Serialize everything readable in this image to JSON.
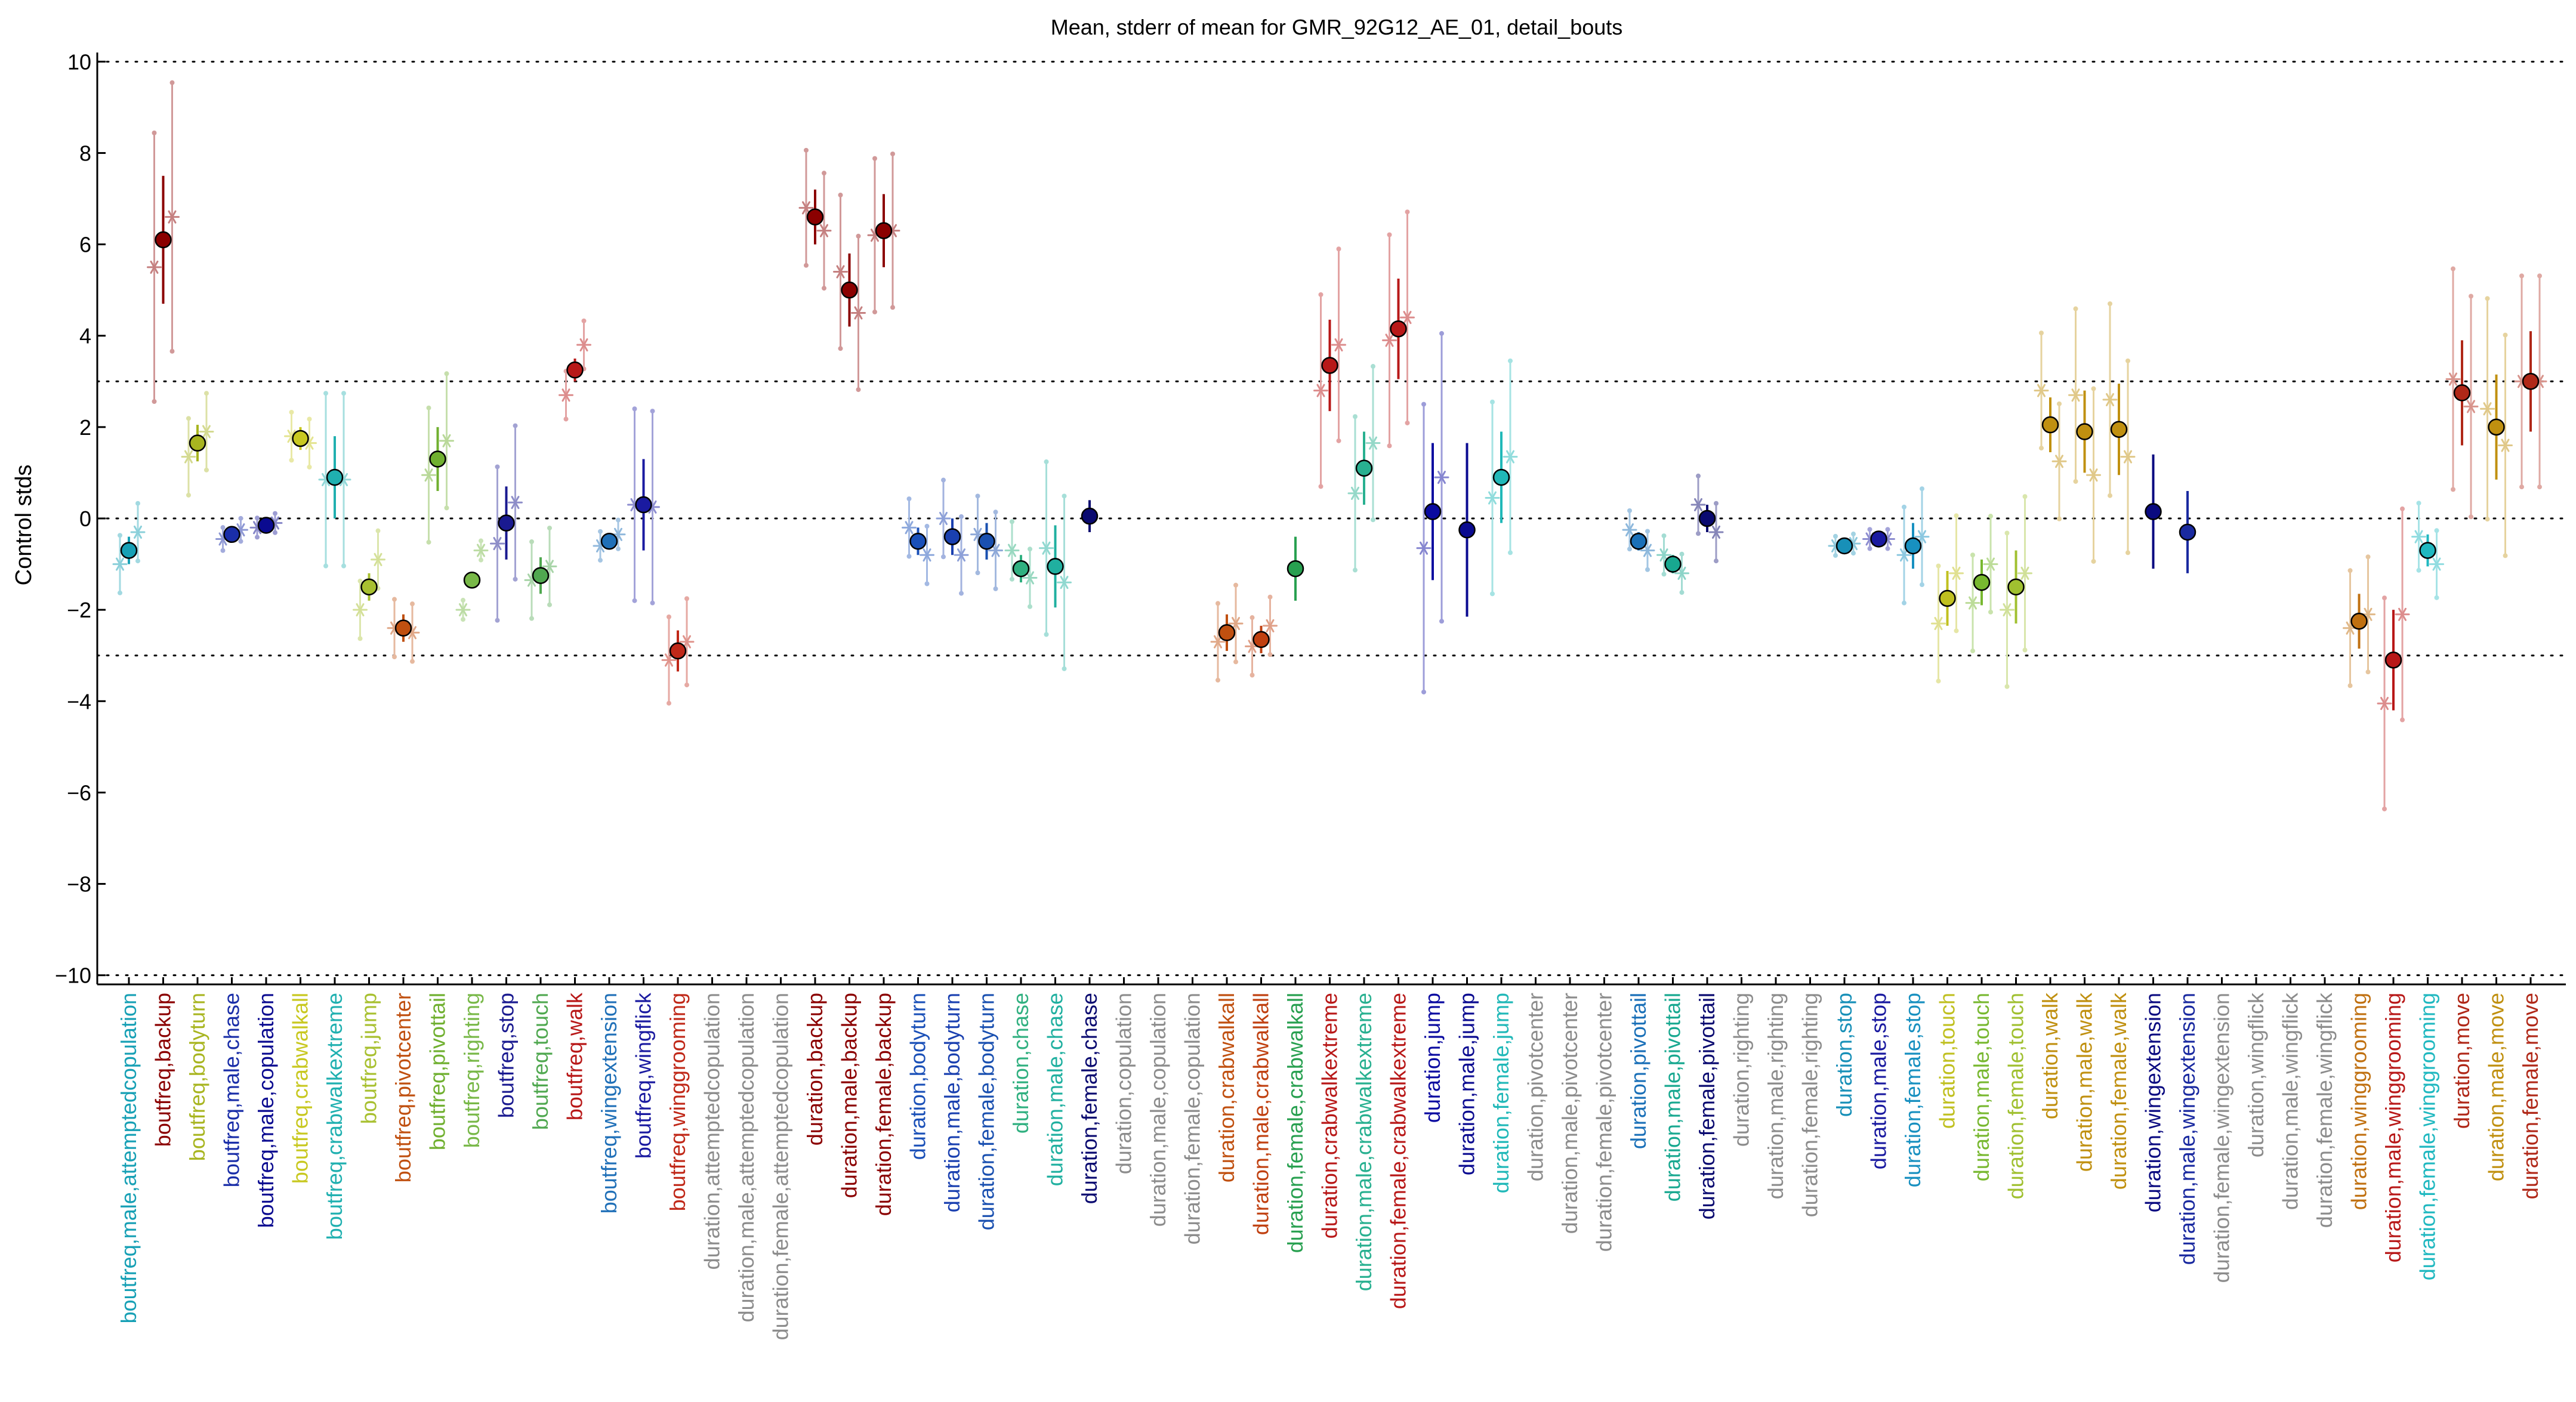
{
  "chart_data": {
    "type": "scatter",
    "title": "Mean, stderr of mean for GMR_92G12_AE_01, detail_bouts",
    "ylabel": "Control stds",
    "xlabel": "",
    "ylim": [
      -10.2,
      10.2
    ],
    "yticks": [
      -10,
      -8,
      -6,
      -4,
      -2,
      0,
      2,
      4,
      6,
      8,
      10
    ],
    "reference_lines": [
      10,
      3,
      0,
      -3,
      -10
    ],
    "grid": false,
    "categories": [
      {
        "label": "boutfreq,male,attemptedcopulation",
        "color": "#17a0b5",
        "mean": -0.7,
        "sem": 0.3,
        "stars": [
          -1.0,
          -0.3
        ]
      },
      {
        "label": "boutfreq,backup",
        "color": "#8b0000",
        "mean": 6.1,
        "sem": 1.4,
        "stars": [
          5.5,
          6.6
        ]
      },
      {
        "label": "boutfreq,bodyturn",
        "color": "#a8b520",
        "mean": 1.65,
        "sem": 0.4,
        "stars": [
          1.35,
          1.9
        ]
      },
      {
        "label": "boutfreq,male,chase",
        "color": "#1a2ea8",
        "mean": -0.35,
        "sem": 0.12,
        "stars": [
          -0.45,
          -0.25
        ]
      },
      {
        "label": "boutfreq,male,copulation",
        "color": "#0a0a90",
        "mean": -0.15,
        "sem": 0.1,
        "stars": [
          -0.2,
          -0.1
        ]
      },
      {
        "label": "boutfreq,crabwalkall",
        "color": "#c8c820",
        "mean": 1.75,
        "sem": 0.25,
        "stars": [
          1.8,
          1.65
        ]
      },
      {
        "label": "boutfreq,crabwalkextreme",
        "color": "#20b0b0",
        "mean": 0.9,
        "sem": 0.9,
        "stars": [
          0.85,
          0.85
        ]
      },
      {
        "label": "boutfreq,jump",
        "color": "#a8c030",
        "mean": -1.5,
        "sem": 0.3,
        "stars": [
          -2.0,
          -0.9
        ]
      },
      {
        "label": "boutfreq,pivotcenter",
        "color": "#c05010",
        "mean": -2.4,
        "sem": 0.3,
        "stars": [
          -2.4,
          -2.5
        ]
      },
      {
        "label": "boutfreq,pivottail",
        "color": "#70b030",
        "mean": 1.3,
        "sem": 0.7,
        "stars": [
          0.95,
          1.7
        ]
      },
      {
        "label": "boutfreq,righting",
        "color": "#78b848",
        "mean": -1.35,
        "sem": 0.1,
        "stars": [
          -2.0,
          -0.7
        ]
      },
      {
        "label": "boutfreq,stop",
        "color": "#1a1a90",
        "mean": -0.1,
        "sem": 0.8,
        "stars": [
          -0.55,
          0.35
        ]
      },
      {
        "label": "boutfreq,touch",
        "color": "#50a850",
        "mean": -1.25,
        "sem": 0.4,
        "stars": [
          -1.35,
          -1.05
        ]
      },
      {
        "label": "boutfreq,walk",
        "color": "#b81818",
        "mean": 3.25,
        "sem": 0.25,
        "stars": [
          2.7,
          3.8
        ]
      },
      {
        "label": "boutfreq,wingextension",
        "color": "#2070b8",
        "mean": -0.5,
        "sem": 0.15,
        "stars": [
          -0.6,
          -0.35
        ]
      },
      {
        "label": "boutfreq,wingflick",
        "color": "#1a1aa0",
        "mean": 0.3,
        "sem": 1.0,
        "stars": [
          0.3,
          0.25
        ]
      },
      {
        "label": "boutfreq,winggrooming",
        "color": "#c02818",
        "mean": -2.9,
        "sem": 0.45,
        "stars": [
          -3.1,
          -2.7
        ]
      },
      {
        "label": "duration,attemptedcopulation",
        "color": "#8c8c8c"
      },
      {
        "label": "duration,male,attemptedcopulation",
        "color": "#8c8c8c"
      },
      {
        "label": "duration,female,attemptedcopulation",
        "color": "#8c8c8c"
      },
      {
        "label": "duration,backup",
        "color": "#8b0000",
        "mean": 6.6,
        "sem": 0.6,
        "stars": [
          6.8,
          6.3
        ]
      },
      {
        "label": "duration,male,backup",
        "color": "#8b0000",
        "mean": 5.0,
        "sem": 0.8,
        "stars": [
          5.4,
          4.5
        ]
      },
      {
        "label": "duration,female,backup",
        "color": "#8b0000",
        "mean": 6.3,
        "sem": 0.8,
        "stars": [
          6.2,
          6.3
        ]
      },
      {
        "label": "duration,bodyturn",
        "color": "#1a50b8",
        "mean": -0.5,
        "sem": 0.3,
        "stars": [
          -0.2,
          -0.8
        ]
      },
      {
        "label": "duration,male,bodyturn",
        "color": "#1a40b0",
        "mean": -0.4,
        "sem": 0.4,
        "stars": [
          0.0,
          -0.8
        ]
      },
      {
        "label": "duration,female,bodyturn",
        "color": "#1a50b0",
        "mean": -0.5,
        "sem": 0.4,
        "stars": [
          -0.35,
          -0.7
        ]
      },
      {
        "label": "duration,chase",
        "color": "#30b080",
        "mean": -1.1,
        "sem": 0.3,
        "stars": [
          -0.7,
          -1.3
        ]
      },
      {
        "label": "duration,male,chase",
        "color": "#20b0a0",
        "mean": -1.05,
        "sem": 0.9,
        "stars": [
          -0.65,
          -1.4
        ]
      },
      {
        "label": "duration,female,chase",
        "color": "#0a0a70",
        "mean": 0.05,
        "sem": 0.35,
        "stars": []
      },
      {
        "label": "duration,copulation",
        "color": "#8c8c8c"
      },
      {
        "label": "duration,male,copulation",
        "color": "#8c8c8c"
      },
      {
        "label": "duration,female,copulation",
        "color": "#8c8c8c"
      },
      {
        "label": "duration,crabwalkall",
        "color": "#c05010",
        "mean": -2.5,
        "sem": 0.4,
        "stars": [
          -2.7,
          -2.3
        ]
      },
      {
        "label": "duration,male,crabwalkall",
        "color": "#c04010",
        "mean": -2.65,
        "sem": 0.3,
        "stars": [
          -2.8,
          -2.35
        ]
      },
      {
        "label": "duration,female,crabwalkall",
        "color": "#28a050",
        "mean": -1.1,
        "sem": 0.7,
        "stars": []
      },
      {
        "label": "duration,crabwalkextreme",
        "color": "#b81818",
        "mean": 3.35,
        "sem": 1.0,
        "stars": [
          2.8,
          3.8
        ]
      },
      {
        "label": "duration,male,crabwalkextreme",
        "color": "#28b090",
        "mean": 1.1,
        "sem": 0.8,
        "stars": [
          0.55,
          1.65
        ]
      },
      {
        "label": "duration,female,crabwalkextreme",
        "color": "#b81818",
        "mean": 4.15,
        "sem": 1.1,
        "stars": [
          3.9,
          4.4
        ]
      },
      {
        "label": "duration,jump",
        "color": "#0a0aa0",
        "mean": 0.15,
        "sem": 1.5,
        "stars": [
          -0.65,
          0.9
        ]
      },
      {
        "label": "duration,male,jump",
        "color": "#0a0a90",
        "mean": -0.25,
        "sem": 1.9,
        "stars": []
      },
      {
        "label": "duration,female,jump",
        "color": "#20b8b8",
        "mean": 0.9,
        "sem": 1.0,
        "stars": [
          0.45,
          1.35
        ]
      },
      {
        "label": "duration,pivotcenter",
        "color": "#8c8c8c"
      },
      {
        "label": "duration,male,pivotcenter",
        "color": "#8c8c8c"
      },
      {
        "label": "duration,female,pivotcenter",
        "color": "#8c8c8c"
      },
      {
        "label": "duration,pivottail",
        "color": "#1a70b8",
        "mean": -0.5,
        "sem": 0.2,
        "stars": [
          -0.25,
          -0.7
        ]
      },
      {
        "label": "duration,male,pivottail",
        "color": "#18a890",
        "mean": -1.0,
        "sem": 0.2,
        "stars": [
          -0.8,
          -1.2
        ]
      },
      {
        "label": "duration,female,pivottail",
        "color": "#0a0a70",
        "mean": 0.0,
        "sem": 0.3,
        "stars": [
          0.3,
          -0.3
        ]
      },
      {
        "label": "duration,righting",
        "color": "#8c8c8c"
      },
      {
        "label": "duration,male,righting",
        "color": "#8c8c8c"
      },
      {
        "label": "duration,female,righting",
        "color": "#8c8c8c"
      },
      {
        "label": "duration,stop",
        "color": "#1890b8",
        "mean": -0.6,
        "sem": 0.1,
        "stars": [
          -0.6,
          -0.55
        ]
      },
      {
        "label": "duration,male,stop",
        "color": "#1a1aa0",
        "mean": -0.45,
        "sem": 0.1,
        "stars": [
          -0.45,
          -0.45
        ]
      },
      {
        "label": "duration,female,stop",
        "color": "#1890c0",
        "mean": -0.6,
        "sem": 0.5,
        "stars": [
          -0.8,
          -0.4
        ]
      },
      {
        "label": "duration,touch",
        "color": "#c0c020",
        "mean": -1.75,
        "sem": 0.6,
        "stars": [
          -2.3,
          -1.2
        ]
      },
      {
        "label": "duration,male,touch",
        "color": "#78b830",
        "mean": -1.4,
        "sem": 0.5,
        "stars": [
          -1.85,
          -1.0
        ]
      },
      {
        "label": "duration,female,touch",
        "color": "#a0c030",
        "mean": -1.5,
        "sem": 0.8,
        "stars": [
          -2.0,
          -1.2
        ]
      },
      {
        "label": "duration,walk",
        "color": "#c09010",
        "mean": 2.05,
        "sem": 0.6,
        "stars": [
          2.8,
          1.25
        ]
      },
      {
        "label": "duration,male,walk",
        "color": "#c09010",
        "mean": 1.9,
        "sem": 0.9,
        "stars": [
          2.7,
          0.95
        ]
      },
      {
        "label": "duration,female,walk",
        "color": "#c09010",
        "mean": 1.95,
        "sem": 1.0,
        "stars": [
          2.6,
          1.35
        ]
      },
      {
        "label": "duration,wingextension",
        "color": "#0a0a80",
        "mean": 0.15,
        "sem": 1.25,
        "stars": []
      },
      {
        "label": "duration,male,wingextension",
        "color": "#1a2aa0",
        "mean": -0.3,
        "sem": 0.9,
        "stars": []
      },
      {
        "label": "duration,female,wingextension",
        "color": "#8c8c8c"
      },
      {
        "label": "duration,wingflick",
        "color": "#8c8c8c"
      },
      {
        "label": "duration,male,wingflick",
        "color": "#8c8c8c"
      },
      {
        "label": "duration,female,wingflick",
        "color": "#8c8c8c"
      },
      {
        "label": "duration,winggrooming",
        "color": "#c07010",
        "mean": -2.25,
        "sem": 0.6,
        "stars": [
          -2.4,
          -2.1
        ]
      },
      {
        "label": "duration,male,winggrooming",
        "color": "#b81818",
        "mean": -3.1,
        "sem": 1.1,
        "stars": [
          -4.05,
          -2.1
        ]
      },
      {
        "label": "duration,female,winggrooming",
        "color": "#20b8c0",
        "mean": -0.7,
        "sem": 0.35,
        "stars": [
          -0.4,
          -1.0
        ]
      },
      {
        "label": "duration,move",
        "color": "#b02818",
        "mean": 2.75,
        "sem": 1.15,
        "stars": [
          3.05,
          2.45
        ]
      },
      {
        "label": "duration,male,move",
        "color": "#c09010",
        "mean": 2.0,
        "sem": 1.15,
        "stars": [
          2.4,
          1.6
        ]
      },
      {
        "label": "duration,female,move",
        "color": "#b02818",
        "mean": 3.0,
        "sem": 1.1,
        "stars": [
          3.0,
          3.0
        ]
      }
    ]
  }
}
